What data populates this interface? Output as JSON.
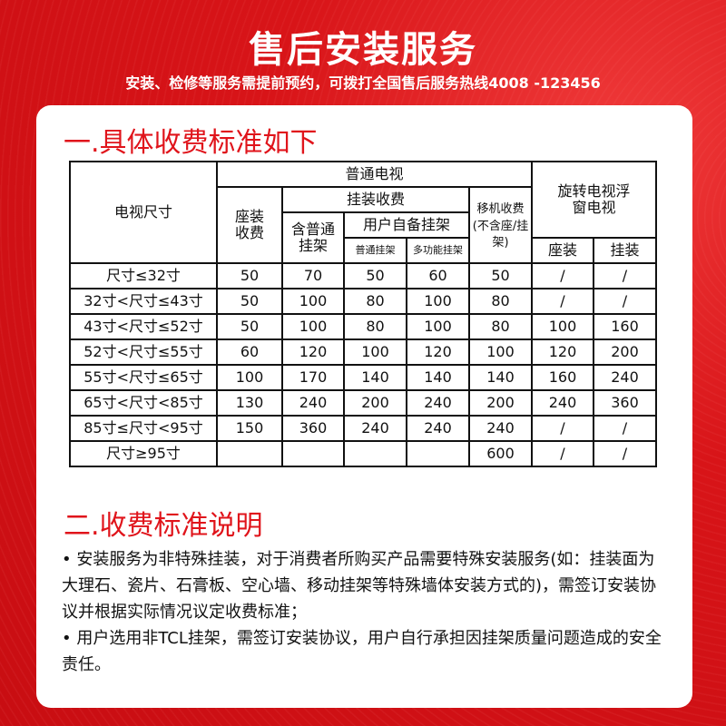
{
  "header": {
    "title": "售后安装服务",
    "subtitle": "安装、检修等服务需提前预约，可拨打全国售后服务热线4008 -123456"
  },
  "section1": {
    "title": "一.具体收费标准如下"
  },
  "table": {
    "size_header": "电视尺寸",
    "normal_tv": "普通电视",
    "rotating_tv": "旋转电视浮窗电视",
    "seat_fee": "座装收费",
    "wall_fee": "挂装收费",
    "move_fee": "移机收费(不含座/挂架)",
    "incl_bracket": "含普通挂架",
    "own_bracket": "用户自备挂架",
    "normal_bracket": "普通挂架",
    "multi_bracket": "多功能挂架",
    "rot_seat": "座装",
    "rot_wall": "挂装",
    "rows": [
      [
        "尺寸≤32寸",
        "50",
        "70",
        "50",
        "60",
        "50",
        "/",
        "/"
      ],
      [
        "32寸<尺寸≤43寸",
        "50",
        "100",
        "80",
        "100",
        "80",
        "/",
        "/"
      ],
      [
        "43寸<尺寸≤52寸",
        "50",
        "100",
        "80",
        "100",
        "80",
        "100",
        "160"
      ],
      [
        "52寸<尺寸≤55寸",
        "60",
        "120",
        "100",
        "120",
        "100",
        "120",
        "200"
      ],
      [
        "55寸<尺寸≤65寸",
        "100",
        "170",
        "140",
        "140",
        "140",
        "160",
        "240"
      ],
      [
        "65寸<尺寸<85寸",
        "130",
        "240",
        "200",
        "240",
        "200",
        "240",
        "360"
      ],
      [
        "85寸≤尺寸<95寸",
        "150",
        "360",
        "240",
        "240",
        "240",
        "/",
        "/"
      ],
      [
        "尺寸≥95寸",
        "",
        "",
        "",
        "",
        "600",
        "/",
        "/"
      ]
    ]
  },
  "section2": {
    "title": "二.收费标准说明",
    "notes": [
      "• 安装服务为非特殊挂装，对于消费者所购买产品需要特殊安装服务(如：挂装面为大理石、瓷片、石膏板、空心墙、移动挂架等特殊墙体安装方式的)，需签订安装协议并根据实际情况议定收费标准；",
      "• 用户选用非TCL挂架，需签订安装协议，用户自行承担因挂架质量问题造成的安全责任。"
    ]
  }
}
